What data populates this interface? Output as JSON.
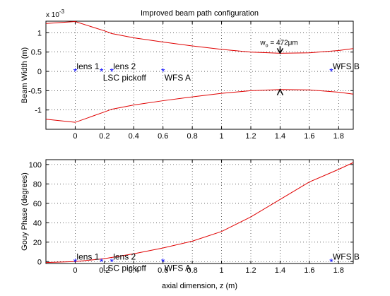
{
  "chart_data": [
    {
      "type": "line",
      "title": "Improved beam path configuration",
      "ylabel": "Beam Width (m)",
      "exponent": {
        "base": "x 10",
        "power": "-3"
      },
      "x": [
        -0.2,
        0,
        0.2,
        0.25,
        0.4,
        0.6,
        0.8,
        1.0,
        1.2,
        1.4,
        1.6,
        1.8,
        1.9
      ],
      "series": [
        {
          "color": "#e00000",
          "values": [
            1.24,
            1.29,
            1.05,
            0.98,
            0.87,
            0.76,
            0.66,
            0.57,
            0.5,
            0.47,
            0.48,
            0.54,
            0.59
          ]
        },
        {
          "color": "#e00000",
          "values": [
            -1.24,
            -1.32,
            -1.05,
            -0.98,
            -0.87,
            -0.76,
            -0.66,
            -0.57,
            -0.5,
            -0.47,
            -0.48,
            -0.54,
            -0.59
          ]
        }
      ],
      "points": [
        {
          "label": "lens 1",
          "x": 0,
          "y": 0,
          "place": "above"
        },
        {
          "label": "LSC pickoff",
          "x": 0.18,
          "y": 0,
          "place": "below"
        },
        {
          "label": "lens 2",
          "x": 0.25,
          "y": 0,
          "place": "above"
        },
        {
          "label": "WFS A",
          "x": 0.6,
          "y": 0,
          "place": "below"
        },
        {
          "label": "WFS B",
          "x": 1.75,
          "y": 0,
          "place": "above"
        }
      ],
      "point_color": "#0000ff",
      "annotation": {
        "text": "w",
        "sub": "o",
        "rest": " = 472μm",
        "x": 1.4,
        "y": 0.47
      },
      "xlim": [
        -0.2,
        1.9
      ],
      "ylim": [
        -1.5,
        1.3
      ],
      "xticks": [
        0,
        0.2,
        0.4,
        0.6,
        0.8,
        1,
        1.2,
        1.4,
        1.6,
        1.8
      ],
      "yticks": [
        -1,
        -0.5,
        0,
        0.5,
        1
      ],
      "grid": true
    },
    {
      "type": "line",
      "ylabel": "Gouy Phase (degrees)",
      "xlabel": "axial dimension, z (m)",
      "x": [
        -0.2,
        0,
        0.2,
        0.4,
        0.6,
        0.8,
        1.0,
        1.2,
        1.4,
        1.6,
        1.8,
        1.9
      ],
      "series": [
        {
          "color": "#e00000",
          "values": [
            -1,
            0,
            3,
            8,
            14,
            21,
            31,
            46,
            64,
            82,
            95,
            102
          ]
        }
      ],
      "points": [
        {
          "label": "lens 1",
          "x": 0,
          "y": 0,
          "place": "above"
        },
        {
          "label": "LSC pickoff",
          "x": 0.18,
          "y": 0,
          "place": "below"
        },
        {
          "label": "lens 2",
          "x": 0.25,
          "y": 0,
          "place": "above"
        },
        {
          "label": "WFS A",
          "x": 0.6,
          "y": 0,
          "place": "below"
        },
        {
          "label": "WFS B",
          "x": 1.75,
          "y": 0,
          "place": "above"
        }
      ],
      "point_color": "#0000ff",
      "xlim": [
        -0.2,
        1.9
      ],
      "ylim": [
        -2,
        105
      ],
      "xticks": [
        0,
        0.2,
        0.4,
        0.6,
        0.8,
        1,
        1.2,
        1.4,
        1.6,
        1.8
      ],
      "yticks": [
        0,
        20,
        40,
        60,
        80,
        100
      ],
      "grid": true
    }
  ]
}
